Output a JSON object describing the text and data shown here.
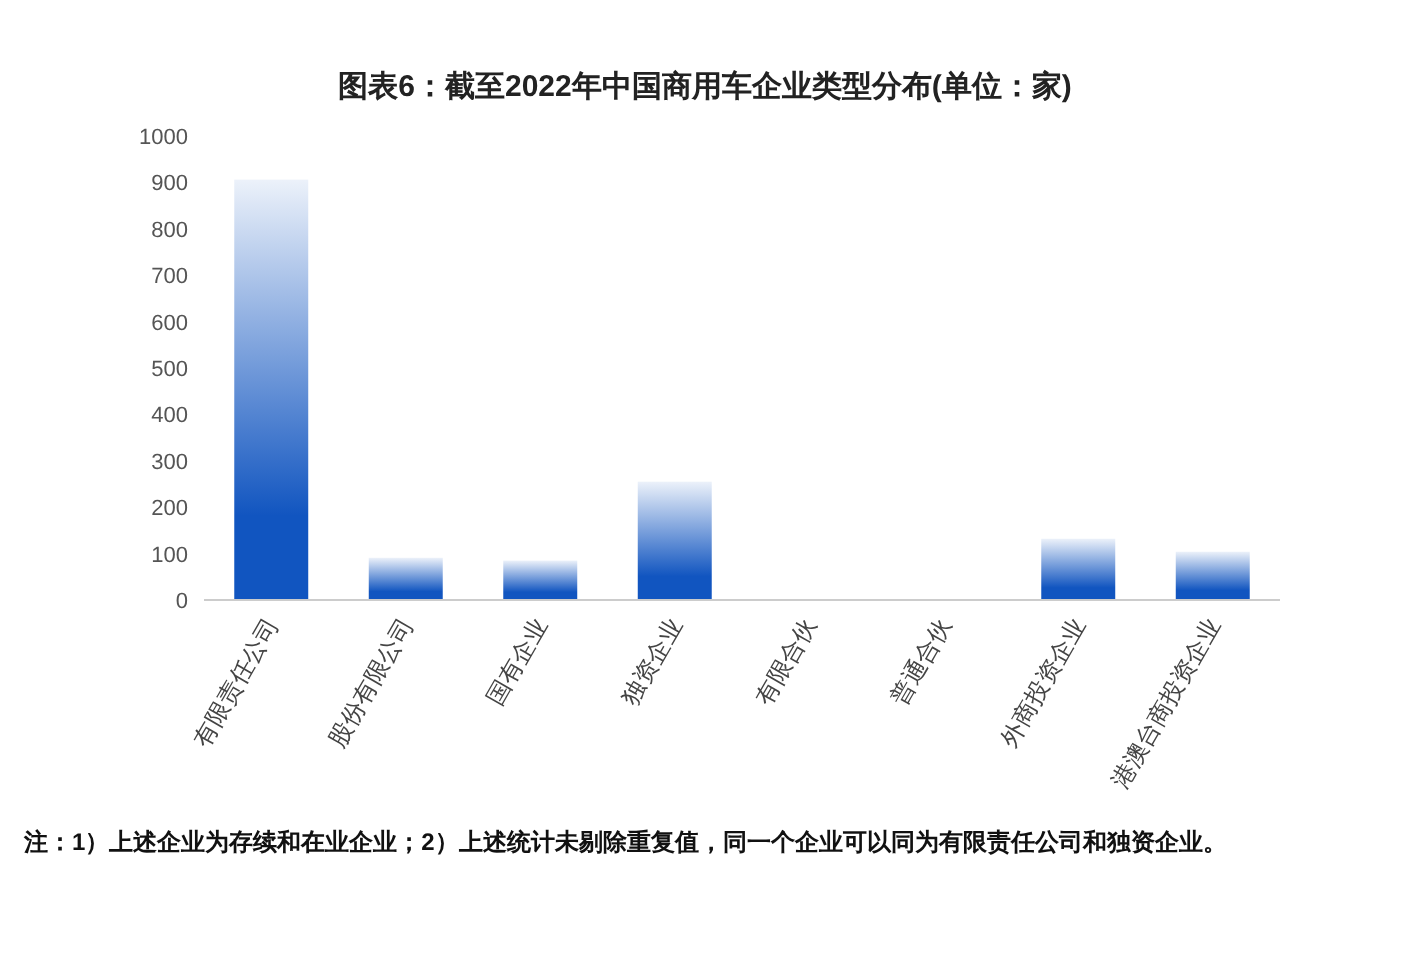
{
  "chart_data": {
    "type": "bar",
    "title": "图表6：截至2022年中国商用车企业类型分布(单位：家)",
    "categories": [
      "有限责任公司",
      "股份有限公司",
      "国有企业",
      "独资企业",
      "有限合伙",
      "普通合伙",
      "外商投资企业",
      "港澳台商投资企业"
    ],
    "values": [
      906,
      91,
      85,
      255,
      0,
      0,
      132,
      104
    ],
    "color": "#1155c0",
    "ylim": [
      0,
      1000
    ],
    "yticks": [
      0,
      100,
      200,
      300,
      400,
      500,
      600,
      700,
      800,
      900,
      1000
    ],
    "grid": false,
    "annotations": [
      "注：1）上述企业为存续和在业企业；2）上述统计未剔除重复值，同一个企业可以同为有限责任公司和独资企业。"
    ]
  }
}
